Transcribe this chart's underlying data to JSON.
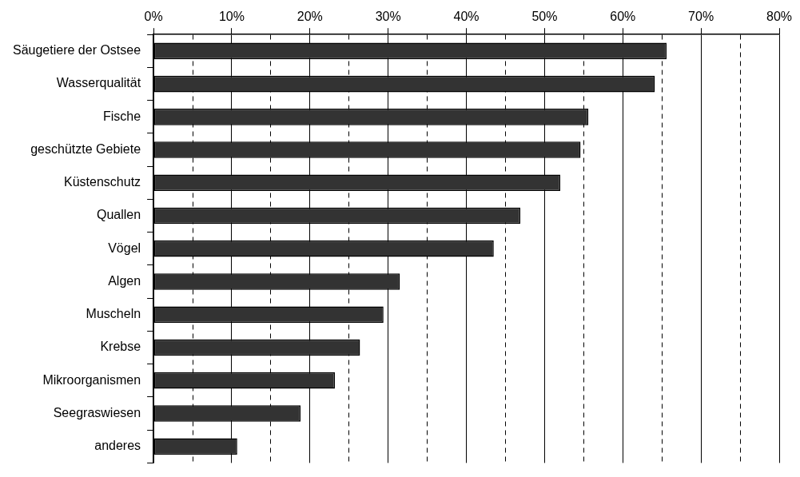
{
  "chart_data": {
    "type": "bar",
    "orientation": "horizontal",
    "categories": [
      "Säugetiere der Ostsee",
      "Wasserqualität",
      "Fische",
      "geschützte Gebiete",
      "Küstenschutz",
      "Quallen",
      "Vögel",
      "Algen",
      "Muscheln",
      "Krebse",
      "Mikroorganismen",
      "Seegraswiesen",
      "anderes"
    ],
    "values": [
      65.6,
      64.1,
      55.6,
      54.6,
      52.0,
      46.9,
      43.5,
      31.5,
      29.4,
      26.4,
      23.2,
      18.8,
      10.7
    ],
    "color": "#333333",
    "xlim": [
      0,
      80
    ],
    "xticks": [
      {
        "value": 0,
        "label": "0%"
      },
      {
        "value": 5,
        "label": null
      },
      {
        "value": 10,
        "label": "10%"
      },
      {
        "value": 15,
        "label": null
      },
      {
        "value": 20,
        "label": "20%"
      },
      {
        "value": 25,
        "label": null
      },
      {
        "value": 30,
        "label": "30%"
      },
      {
        "value": 35,
        "label": null
      },
      {
        "value": 40,
        "label": "40%"
      },
      {
        "value": 45,
        "label": null
      },
      {
        "value": 50,
        "label": "50%"
      },
      {
        "value": 55,
        "label": null
      },
      {
        "value": 60,
        "label": "60%"
      },
      {
        "value": 65,
        "label": null
      },
      {
        "value": 70,
        "label": "70%"
      },
      {
        "value": 75,
        "label": null
      },
      {
        "value": 80,
        "label": "80%"
      }
    ],
    "grid": "x",
    "legend": false
  }
}
